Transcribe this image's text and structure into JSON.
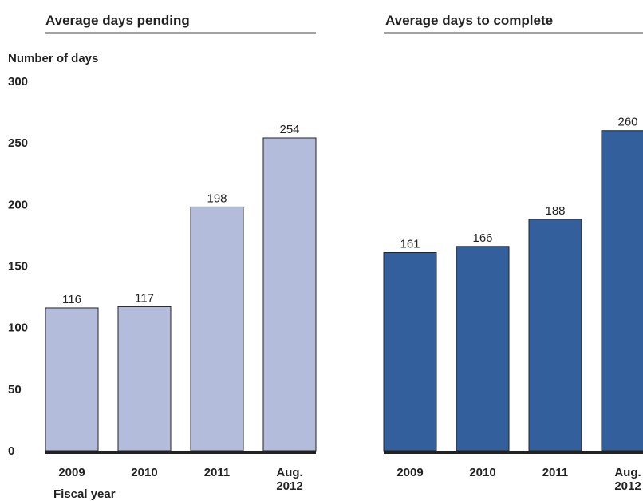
{
  "chart_data": [
    {
      "type": "bar",
      "title": "Average days pending",
      "ylabel": "Number of days",
      "xlabel": "Fiscal year",
      "categories": [
        "2009",
        "2010",
        "2011",
        "Aug.\n2012"
      ],
      "values": [
        116,
        117,
        198,
        254
      ],
      "data_labels": [
        "116",
        "117",
        "198",
        "254"
      ],
      "yticks": [
        "0",
        "50",
        "100",
        "150",
        "200",
        "250",
        "300"
      ],
      "ylim": [
        0,
        300
      ],
      "grid": false,
      "bar_color": "#B4BCDC",
      "bar_edge_color": "#222222"
    },
    {
      "type": "bar",
      "title": "Average days to complete",
      "categories": [
        "2009",
        "2010",
        "2011",
        "Aug.\n2012"
      ],
      "values": [
        161,
        166,
        188,
        260
      ],
      "data_labels": [
        "161",
        "166",
        "188",
        "260"
      ],
      "ylim": [
        0,
        300
      ],
      "grid": false,
      "bar_color": "#335F9D",
      "bar_edge_color": "#222222"
    }
  ]
}
